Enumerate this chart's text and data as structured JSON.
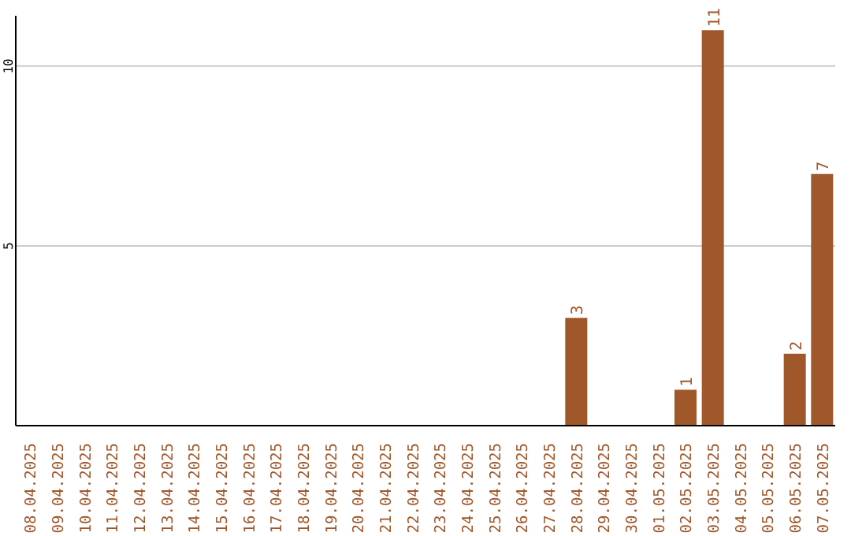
{
  "chart_data": {
    "type": "bar",
    "categories": [
      "08.04.2025",
      "09.04.2025",
      "10.04.2025",
      "11.04.2025",
      "12.04.2025",
      "13.04.2025",
      "14.04.2025",
      "15.04.2025",
      "16.04.2025",
      "17.04.2025",
      "18.04.2025",
      "19.04.2025",
      "20.04.2025",
      "21.04.2025",
      "22.04.2025",
      "23.04.2025",
      "24.04.2025",
      "25.04.2025",
      "26.04.2025",
      "27.04.2025",
      "28.04.2025",
      "29.04.2025",
      "30.04.2025",
      "01.05.2025",
      "02.05.2025",
      "03.05.2025",
      "04.05.2025",
      "05.05.2025",
      "06.05.2025",
      "07.05.2025"
    ],
    "values": [
      0,
      0,
      0,
      0,
      0,
      0,
      0,
      0,
      0,
      0,
      0,
      0,
      0,
      0,
      0,
      0,
      0,
      0,
      0,
      0,
      3,
      0,
      0,
      0,
      1,
      11,
      0,
      0,
      2,
      7
    ],
    "value_labels": [
      null,
      null,
      null,
      null,
      null,
      null,
      null,
      null,
      null,
      null,
      null,
      null,
      null,
      null,
      null,
      null,
      null,
      null,
      null,
      null,
      "3",
      null,
      null,
      null,
      "1",
      "11",
      null,
      null,
      "2",
      "7"
    ],
    "color": "#a0572a",
    "ylim": [
      0,
      11.4
    ],
    "yticks": [
      5,
      10
    ],
    "grid": "y"
  }
}
